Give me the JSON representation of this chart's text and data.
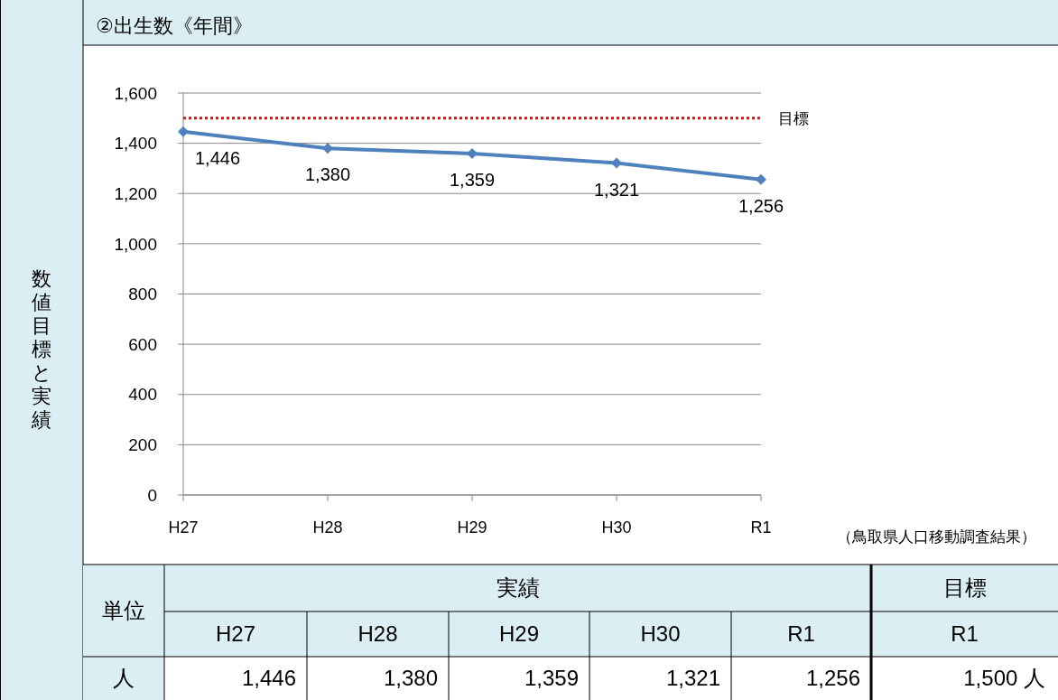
{
  "chart_data": {
    "type": "line",
    "title": "②出生数《年間》",
    "categories": [
      "H27",
      "H28",
      "H29",
      "H30",
      "R1"
    ],
    "series": [
      {
        "color": "#4f81bd",
        "values": [
          1446,
          1380,
          1359,
          1321,
          1256
        ],
        "value_labels": [
          "1,446",
          "1,380",
          "1,359",
          "1,321",
          "1,256"
        ]
      }
    ],
    "ylim": [
      0,
      1600
    ],
    "yticks": [
      0,
      200,
      400,
      600,
      800,
      {
        "value": 1000,
        "label": "1,000"
      },
      {
        "value": 1200,
        "label": "1,200"
      },
      {
        "value": 1400,
        "label": "1,400"
      },
      {
        "value": 1600,
        "label": "1,600"
      }
    ],
    "grid": "y",
    "marker": "diamond",
    "ref_lines": [
      {
        "axis": "y",
        "value": 1500,
        "label": "目標",
        "color": "#ff0000",
        "line_style": "dotted"
      }
    ],
    "annotations": [
      "（鳥取県人口移動調査結果）",
      "数値目標と実績",
      "単位",
      "実績",
      "人",
      "1,500 人"
    ]
  }
}
